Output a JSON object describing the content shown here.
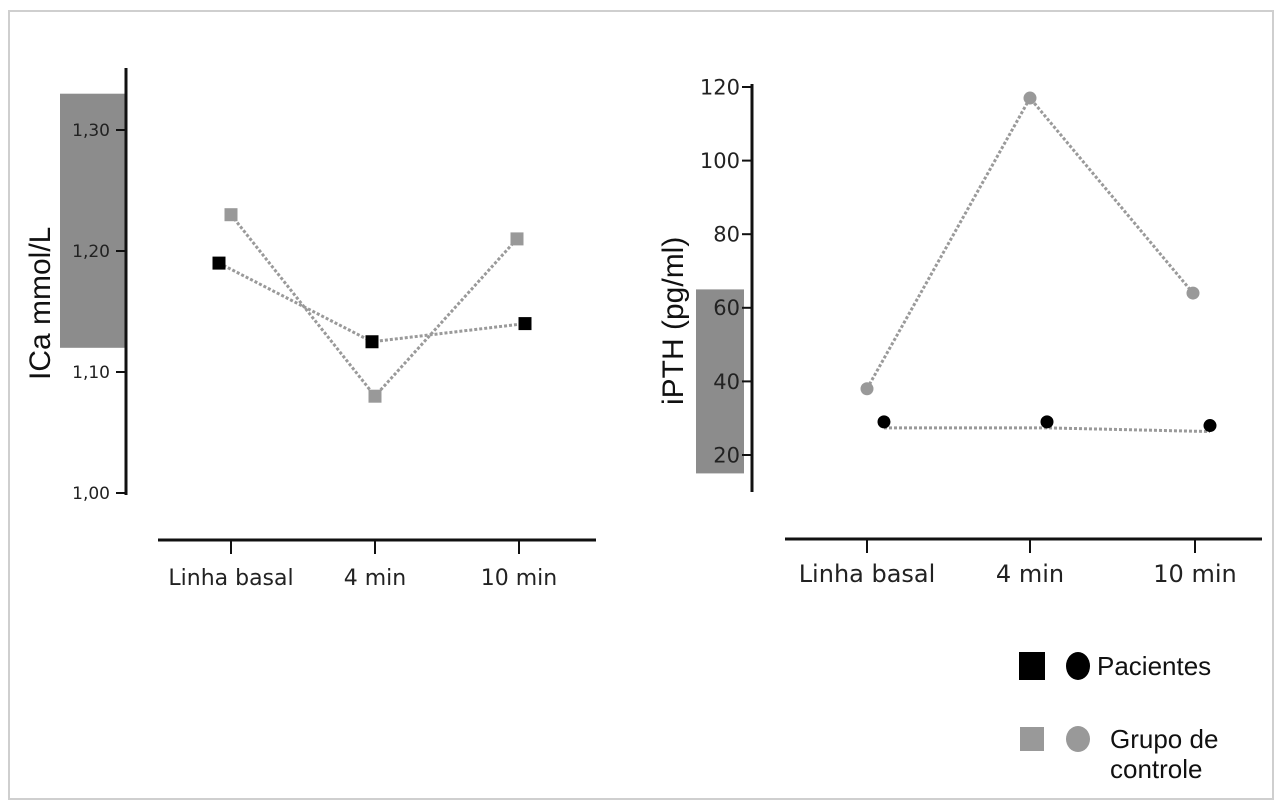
{
  "colors": {
    "patients": "#000000",
    "control": "#999999",
    "reference_band": "#8c8c8c",
    "axis": "#111111",
    "connector": "#9a9a9a"
  },
  "legend": {
    "patients_label": "Pacientes",
    "control_label": "Grupo de controle"
  },
  "chart_data": [
    {
      "type": "line",
      "ylabel": "ICa mmol/L",
      "categories": [
        "Linha basal",
        "4 min",
        "10 min"
      ],
      "yticks": [
        "1,00",
        "1,10",
        "1,20",
        "1,30"
      ],
      "ylim": [
        1.0,
        1.3
      ],
      "reference_range": [
        1.12,
        1.33
      ],
      "marker": "square",
      "series": [
        {
          "name": "Pacientes",
          "values": [
            1.19,
            1.125,
            1.14
          ]
        },
        {
          "name": "Grupo de controle",
          "values": [
            1.23,
            1.08,
            1.21
          ]
        }
      ]
    },
    {
      "type": "line",
      "ylabel": "iPTH (pg/ml)",
      "categories": [
        "Linha basal",
        "4 min",
        "10 min"
      ],
      "yticks": [
        "20",
        "40",
        "60",
        "80",
        "100",
        "120"
      ],
      "ylim": [
        20,
        120
      ],
      "reference_range": [
        15,
        65
      ],
      "marker": "circle",
      "series": [
        {
          "name": "Pacientes",
          "values": [
            29,
            29,
            28
          ]
        },
        {
          "name": "Grupo de controle",
          "values": [
            38,
            117,
            64
          ]
        }
      ]
    }
  ]
}
